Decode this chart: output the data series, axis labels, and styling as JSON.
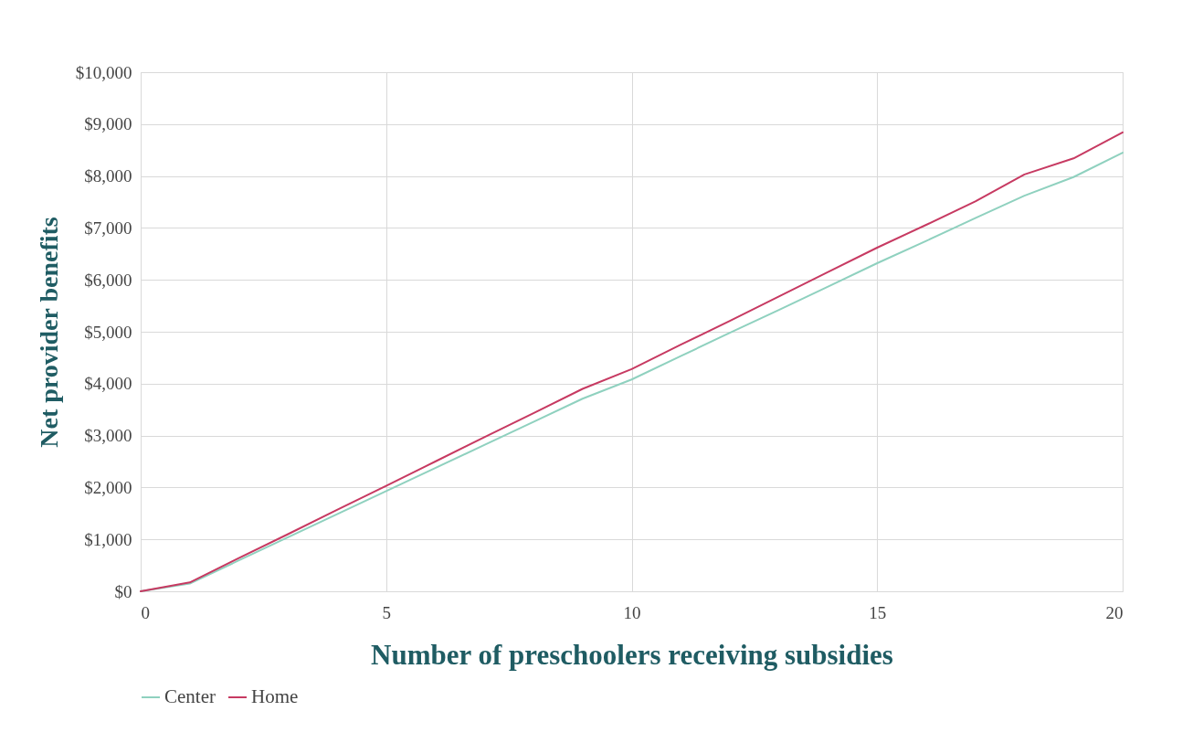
{
  "chart_data": {
    "type": "line",
    "xlabel": "Number of preschoolers receiving subsidies",
    "ylabel": "Net provider benefits",
    "x": [
      0,
      1,
      2,
      3,
      4,
      5,
      6,
      7,
      8,
      9,
      10,
      11,
      12,
      13,
      14,
      15,
      16,
      17,
      18,
      19,
      20
    ],
    "series": [
      {
        "name": "Center",
        "color": "#8fd1bf",
        "values": [
          0,
          150,
          595,
          1040,
          1485,
          1930,
          2375,
          2820,
          3265,
          3710,
          4080,
          4530,
          4980,
          5420,
          5870,
          6320,
          6750,
          7190,
          7620,
          7980,
          8450
        ]
      },
      {
        "name": "Home",
        "color": "#c73a62",
        "values": [
          0,
          170,
          640,
          1100,
          1570,
          2030,
          2500,
          2970,
          3430,
          3900,
          4280,
          4750,
          5210,
          5680,
          6150,
          6620,
          7060,
          7510,
          8030,
          8340,
          8840
        ]
      }
    ],
    "xlim": [
      0,
      20
    ],
    "xticks": [
      0,
      5,
      10,
      15,
      20
    ],
    "ylim": [
      0,
      10000
    ],
    "yticks": [
      {
        "value": 0,
        "label": "$0"
      },
      {
        "value": 1000,
        "label": "$1,000"
      },
      {
        "value": 2000,
        "label": "$2,000"
      },
      {
        "value": 3000,
        "label": "$3,000"
      },
      {
        "value": 4000,
        "label": "$4,000"
      },
      {
        "value": 5000,
        "label": "$5,000"
      },
      {
        "value": 6000,
        "label": "$6,000"
      },
      {
        "value": 7000,
        "label": "$7,000"
      },
      {
        "value": 8000,
        "label": "$8,000"
      },
      {
        "value": 9000,
        "label": "$9,000"
      },
      {
        "value": 10000,
        "label": "$10,000"
      }
    ],
    "grid": true,
    "legend": "bottom",
    "marker": "none",
    "line_style": "solid"
  }
}
